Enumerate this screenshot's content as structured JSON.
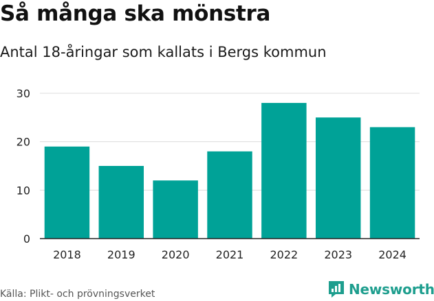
{
  "header": {
    "title": "Så många ska mönstra",
    "subtitle": "Antal 18-åringar som kallats i Bergs kommun"
  },
  "footer": {
    "source": "Källa: Plikt- och prövningsverket",
    "brand_name": "Newsworthy",
    "brand_icon": "newsworthy-logo-icon"
  },
  "colors": {
    "bar": "#00a297",
    "grid": "#dcdcdc",
    "axis": "#222222",
    "brand": "#1e9e8e"
  },
  "chart_data": {
    "type": "bar",
    "title": "Så många ska mönstra",
    "subtitle": "Antal 18-åringar som kallats i Bergs kommun",
    "xlabel": "",
    "ylabel": "",
    "categories": [
      "2018",
      "2019",
      "2020",
      "2021",
      "2022",
      "2023",
      "2024"
    ],
    "values": [
      19,
      15,
      12,
      18,
      28,
      25,
      23
    ],
    "ylim": [
      0,
      30
    ],
    "yticks": [
      0,
      10,
      20,
      30
    ],
    "grid": true,
    "legend": "none"
  }
}
